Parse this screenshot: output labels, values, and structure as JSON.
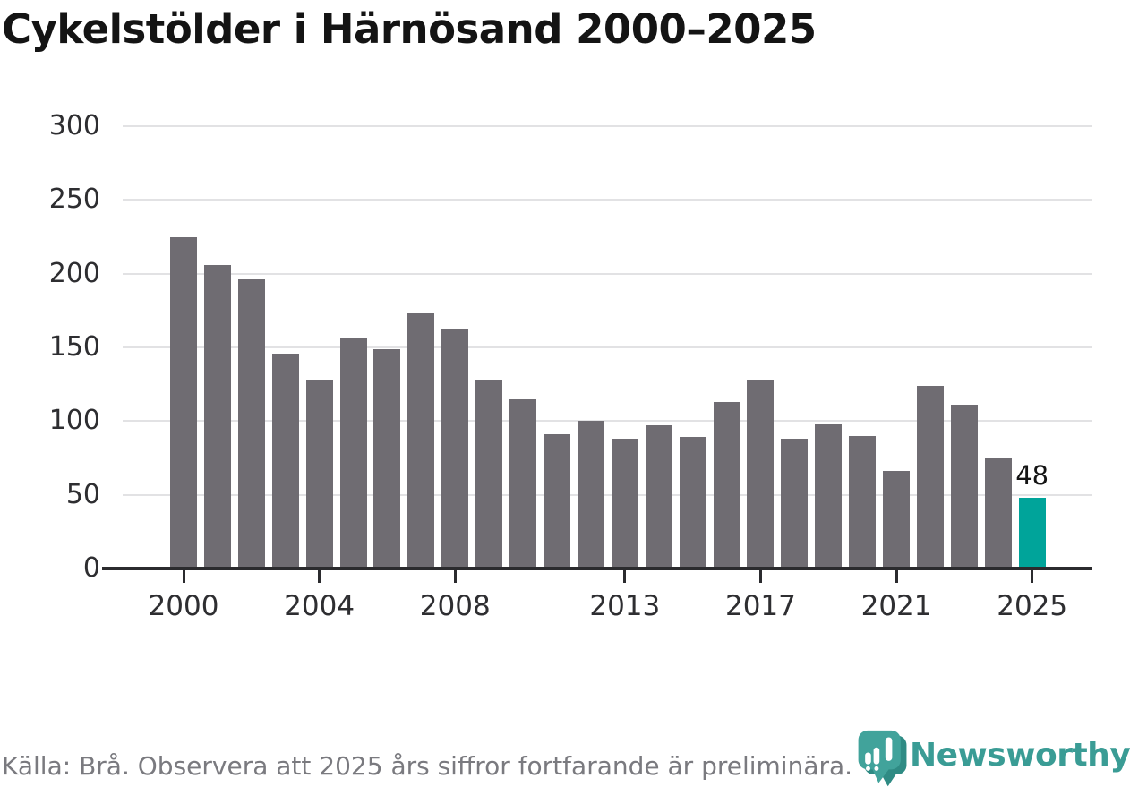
{
  "title": "Cykelstölder i Härnösand 2000–2025",
  "footer": {
    "source_text": "Källa: Brå. Observera att 2025 års siffror fortfarande är preliminära."
  },
  "logo": {
    "wordmark": "Newsworthy",
    "icon": "newsworthy-pin-icon",
    "brand_color": "#3a9c95"
  },
  "colors": {
    "bar": "#6f6c72",
    "highlight": "#00a49a",
    "gridline": "#e2e2e4",
    "axis": "#2b2b2e",
    "tick_label": "#2e2e31",
    "title": "#141414",
    "footer": "#7a7a7f"
  },
  "chart_data": {
    "type": "bar",
    "title": "Cykelstölder i Härnösand 2000–2025",
    "xlabel": "",
    "ylabel": "",
    "ylim": [
      0,
      300
    ],
    "grid": true,
    "legend": "none",
    "categories": [
      2000,
      2001,
      2002,
      2003,
      2004,
      2005,
      2006,
      2007,
      2008,
      2009,
      2010,
      2011,
      2012,
      2013,
      2014,
      2015,
      2016,
      2017,
      2018,
      2019,
      2020,
      2021,
      2022,
      2023,
      2024,
      2025
    ],
    "values": [
      225,
      206,
      196,
      146,
      128,
      156,
      149,
      173,
      162,
      128,
      115,
      91,
      100,
      88,
      97,
      89,
      113,
      128,
      88,
      98,
      90,
      66,
      124,
      111,
      75,
      48
    ],
    "yticks": [
      0,
      50,
      100,
      150,
      200,
      250,
      300
    ],
    "xticks": [
      2000,
      2004,
      2008,
      2013,
      2017,
      2021,
      2025
    ],
    "highlight": {
      "category": 2025,
      "color": "#00a49a",
      "label": "48"
    },
    "bar_color": "#6f6c72"
  }
}
